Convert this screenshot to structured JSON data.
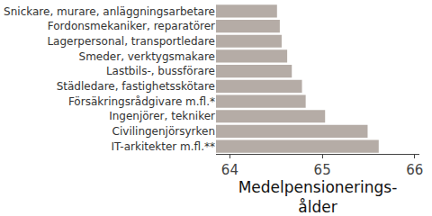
{
  "chart_data": {
    "type": "bar",
    "orientation": "horizontal",
    "xlabel": "Medelpensionerings-\nålder",
    "categories": [
      "Snickare, murare, anläggningsarbetare",
      "Fordonsmekaniker, reparatörer",
      "Lagerpersonal, transportledare",
      "Smeder, verktygsmakare",
      "Lastbils-, bussförare",
      "Städledare, fastighetsskötare",
      "Försäkringsrådgivare m.fl.*",
      "Ingenjörer, tekniker",
      "Civilingenjörsyrken",
      "IT-arkitekter m.fl.**"
    ],
    "values": [
      64.51,
      64.54,
      64.56,
      64.62,
      64.67,
      64.78,
      64.82,
      65.03,
      65.49,
      65.61
    ],
    "color": "#b5aca6",
    "xlim": [
      63.85,
      66.05
    ],
    "xticks": [
      64,
      65,
      66
    ],
    "grid": false
  }
}
